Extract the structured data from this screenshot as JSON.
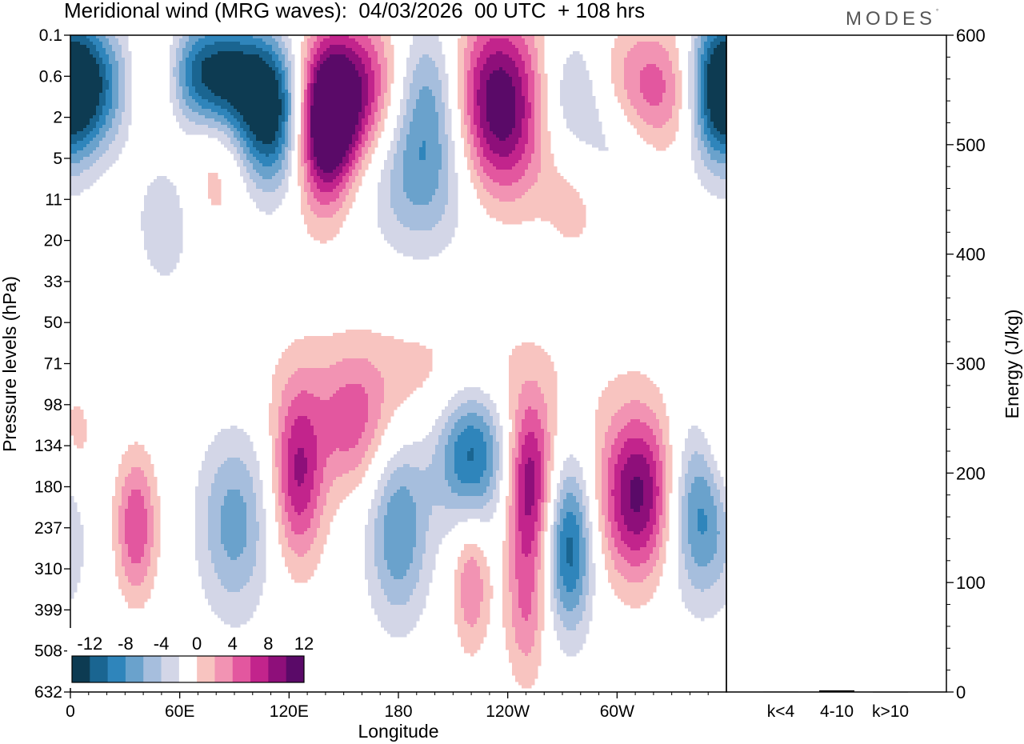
{
  "title": "Meridional wind (MRG waves):  04/03/2026  00 UTC  + 108 hrs",
  "brand": "MODES",
  "brand_mark": "°",
  "chart_data": [
    {
      "type": "heatmap",
      "title": "Meridional wind (MRG waves):  04/03/2026  00 UTC  + 108 hrs",
      "xlabel": "Longitude",
      "ylabel": "Pressure levels (hPa)",
      "x_ticks": [
        "0",
        "60E",
        "120E",
        "180",
        "120W",
        "60W"
      ],
      "x_tick_values": [
        0,
        60,
        120,
        180,
        240,
        300
      ],
      "xlim": [
        0,
        360
      ],
      "y_ticks": [
        "0.1",
        "0.6",
        "2",
        "5",
        "11",
        "20",
        "33",
        "50",
        "71",
        "98",
        "134",
        "180",
        "237",
        "310",
        "399",
        "508",
        "632"
      ],
      "colorbar": {
        "labels": [
          "-12",
          "-8",
          "-4",
          "0",
          "4",
          "8",
          "12"
        ],
        "levels": [
          -14,
          -12,
          -10,
          -8,
          -6,
          -4,
          -2,
          2,
          4,
          6,
          8,
          10,
          12,
          14
        ],
        "colors": [
          "#0d3b52",
          "#1a6591",
          "#2f85bb",
          "#6aa2cc",
          "#a6bedd",
          "#d3d6e7",
          "#ffffff",
          "#f8c4c0",
          "#f293b3",
          "#e3579f",
          "#c2248c",
          "#8e0f7a",
          "#5a0a68"
        ]
      },
      "blobs": [
        {
          "lon": 8,
          "lev": 0.8,
          "v": -12,
          "w": 16,
          "h": 1.3
        },
        {
          "lon": 48,
          "lev": 0.6,
          "v": 8,
          "w": 12,
          "h": 1.2
        },
        {
          "lon": 75,
          "lev": 0.55,
          "v": -13,
          "w": 24,
          "h": 1.0
        },
        {
          "lon": 103,
          "lev": 1.1,
          "v": -5,
          "w": 18,
          "h": 1.3
        },
        {
          "lon": 110,
          "lev": 2.4,
          "v": -10,
          "w": 12,
          "h": 1.5
        },
        {
          "lon": 158,
          "lev": 1.0,
          "v": 12,
          "w": 22,
          "h": 1.8
        },
        {
          "lon": 137,
          "lev": 3.5,
          "v": 6,
          "w": 11,
          "h": 2.2
        },
        {
          "lon": 143,
          "lev": 2.2,
          "v": 9,
          "w": 10,
          "h": 1.4
        },
        {
          "lon": 197,
          "lev": 1.0,
          "v": -11,
          "w": 18,
          "h": 1.8
        },
        {
          "lon": 232,
          "lev": 0.85,
          "v": 13,
          "w": 22,
          "h": 1.8
        },
        {
          "lon": 275,
          "lev": 1.0,
          "v": -8,
          "w": 16,
          "h": 1.4
        },
        {
          "lon": 315,
          "lev": 0.9,
          "v": 8,
          "w": 28,
          "h": 1.3
        },
        {
          "lon": 355,
          "lev": 0.9,
          "v": -11,
          "w": 12,
          "h": 1.8
        },
        {
          "lon": 237,
          "lev": 4.2,
          "v": 5,
          "w": 16,
          "h": 1.4
        },
        {
          "lon": 182,
          "lev": 5.5,
          "v": -4,
          "w": 22,
          "h": 1.5
        },
        {
          "lon": 300,
          "lev": 3.5,
          "v": -4,
          "w": 14,
          "h": 1.4
        },
        {
          "lon": 80,
          "lev": 5.5,
          "v": 3.5,
          "w": 12,
          "h": 1.6
        },
        {
          "lon": 52,
          "lev": 15,
          "v": -3.5,
          "w": 12,
          "h": 1.6
        },
        {
          "lon": 278,
          "lev": 11,
          "v": 3,
          "w": 14,
          "h": 1.3
        },
        {
          "lon": 195,
          "lev": 11,
          "v": -3,
          "w": 18,
          "h": 1.5
        },
        {
          "lon": 90,
          "lev": 230,
          "v": -7,
          "w": 14,
          "h": 2.4
        },
        {
          "lon": 125,
          "lev": 165,
          "v": 10,
          "w": 10,
          "h": 2.2
        },
        {
          "lon": 36,
          "lev": 235,
          "v": 8,
          "w": 8,
          "h": 1.5
        },
        {
          "lon": 180,
          "lev": 240,
          "v": -8,
          "w": 12,
          "h": 2.4
        },
        {
          "lon": 155,
          "lev": 118,
          "v": 6,
          "w": 14,
          "h": 1.4
        },
        {
          "lon": 220,
          "lev": 140,
          "v": -11,
          "w": 14,
          "h": 1.5
        },
        {
          "lon": 252,
          "lev": 170,
          "v": 11,
          "w": 9,
          "h": 1.8
        },
        {
          "lon": 274,
          "lev": 270,
          "v": -11,
          "w": 9,
          "h": 2.0
        },
        {
          "lon": 312,
          "lev": 190,
          "v": 13,
          "w": 15,
          "h": 2.0
        },
        {
          "lon": 346,
          "lev": 210,
          "v": -10,
          "w": 14,
          "h": 2.2
        },
        {
          "lon": 250,
          "lev": 380,
          "v": 6,
          "w": 8,
          "h": 2.0
        },
        {
          "lon": 220,
          "lev": 340,
          "v": 6,
          "w": 7,
          "h": 1.4
        },
        {
          "lon": 360,
          "lev": 140,
          "v": 5,
          "w": 10,
          "h": 1.5
        },
        {
          "lon": 200,
          "lev": 80,
          "v": 3,
          "w": 60,
          "h": 1.3
        }
      ]
    },
    {
      "type": "bar",
      "title": "",
      "xlabel": "",
      "ylabel": "Energy (J/kg)",
      "categories": [
        "k<4",
        "4-10",
        "k>10"
      ],
      "values": [
        0.4,
        1.5,
        0.3
      ],
      "ylim": [
        0,
        600
      ],
      "y_ticks": [
        "0",
        "100",
        "200",
        "300",
        "400",
        "500",
        "600"
      ],
      "y_tick_values": [
        0,
        100,
        200,
        300,
        400,
        500,
        600
      ]
    }
  ]
}
